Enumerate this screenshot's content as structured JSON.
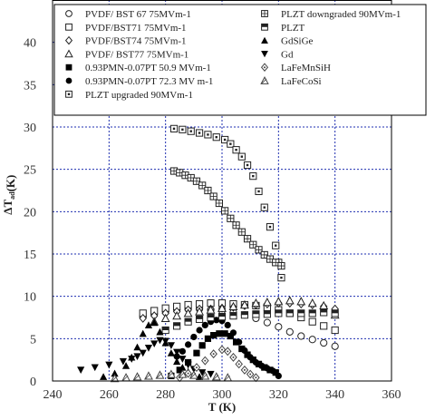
{
  "chart_data": {
    "type": "scatter",
    "xlabel": "T (K)",
    "ylabel": "ΔT_ad (K)",
    "ylabel_main": "ΔT",
    "ylabel_sub": "ad",
    "ylabel_unit": "(K)",
    "xlim": [
      240,
      360
    ],
    "ylim": [
      0,
      45
    ],
    "x_ticks": [
      240,
      260,
      280,
      300,
      320,
      340,
      360
    ],
    "y_ticks": [
      0,
      5,
      10,
      15,
      20,
      25,
      30,
      35,
      40
    ],
    "grid": true,
    "legend_position": "top",
    "series": [
      {
        "name": "PVDF/ BST 67 75MVm-1",
        "marker": "circle-open",
        "color": "#222222",
        "points": [
          [
            272,
            7.6
          ],
          [
            276,
            7.9
          ],
          [
            280,
            8.2
          ],
          [
            284,
            8.4
          ],
          [
            288,
            8.5
          ],
          [
            292,
            8.5
          ],
          [
            296,
            8.4
          ],
          [
            300,
            8.3
          ],
          [
            304,
            8.1
          ],
          [
            308,
            7.8
          ],
          [
            312,
            7.4
          ],
          [
            316,
            6.9
          ],
          [
            320,
            6.4
          ],
          [
            324,
            5.8
          ],
          [
            328,
            5.3
          ],
          [
            332,
            4.9
          ],
          [
            336,
            4.5
          ],
          [
            340,
            4.1
          ]
        ]
      },
      {
        "name": "PVDF/BST71 75MVm-1",
        "marker": "square-open",
        "color": "#222222",
        "points": [
          [
            272,
            8.0
          ],
          [
            276,
            8.3
          ],
          [
            280,
            8.6
          ],
          [
            284,
            8.8
          ],
          [
            288,
            9.0
          ],
          [
            292,
            9.1
          ],
          [
            296,
            9.2
          ],
          [
            300,
            9.2
          ],
          [
            304,
            9.1
          ],
          [
            308,
            9.0
          ],
          [
            312,
            8.9
          ],
          [
            316,
            8.7
          ],
          [
            320,
            8.4
          ],
          [
            324,
            8.0
          ],
          [
            328,
            7.5
          ],
          [
            332,
            7.0
          ],
          [
            336,
            6.5
          ],
          [
            340,
            6.0
          ]
        ]
      },
      {
        "name": "PVDF/BST74 75MVm-1",
        "marker": "diamond-open",
        "color": "#222222",
        "points": [
          [
            272,
            7.4
          ],
          [
            276,
            7.7
          ],
          [
            280,
            8.0
          ],
          [
            284,
            8.2
          ],
          [
            288,
            8.4
          ],
          [
            292,
            8.5
          ],
          [
            296,
            8.5
          ],
          [
            300,
            8.6
          ],
          [
            304,
            8.7
          ],
          [
            308,
            8.9
          ],
          [
            312,
            9.0
          ],
          [
            316,
            9.1
          ],
          [
            320,
            9.2
          ],
          [
            324,
            9.2
          ],
          [
            328,
            9.1
          ],
          [
            332,
            9.0
          ],
          [
            336,
            8.8
          ],
          [
            340,
            8.5
          ]
        ]
      },
      {
        "name": "PVDF/ BST77 75MVm-1",
        "marker": "triangle-open",
        "color": "#222222",
        "points": [
          [
            276,
            7.0
          ],
          [
            280,
            7.4
          ],
          [
            284,
            7.7
          ],
          [
            288,
            8.0
          ],
          [
            292,
            8.2
          ],
          [
            296,
            8.4
          ],
          [
            300,
            8.6
          ],
          [
            304,
            8.8
          ],
          [
            308,
            9.0
          ],
          [
            312,
            9.2
          ],
          [
            316,
            9.3
          ],
          [
            320,
            9.4
          ],
          [
            324,
            9.5
          ],
          [
            328,
            9.4
          ],
          [
            332,
            9.2
          ],
          [
            336,
            8.9
          ],
          [
            340,
            7.8
          ]
        ]
      },
      {
        "name": "0.93PMN-0.07PT  50.9 MVm-1",
        "marker": "square-filled",
        "color": "#000000",
        "points": [
          [
            282,
            0.6
          ],
          [
            285,
            1.3
          ],
          [
            288,
            2.2
          ],
          [
            291,
            3.3
          ],
          [
            293,
            4.2
          ],
          [
            295,
            5.0
          ],
          [
            297,
            5.4
          ],
          [
            299,
            5.6
          ],
          [
            301,
            5.6
          ],
          [
            303,
            5.3
          ],
          [
            305,
            4.6
          ],
          [
            307,
            3.8
          ],
          [
            309,
            3.1
          ],
          [
            311,
            2.5
          ],
          [
            313,
            2.0
          ],
          [
            315,
            1.6
          ],
          [
            317,
            1.3
          ],
          [
            319,
            1.0
          ]
        ]
      },
      {
        "name": "0.93PMN-0.07PT 72.3 MV m-1",
        "marker": "circle-filled",
        "color": "#000000",
        "points": [
          [
            284,
            2.9
          ],
          [
            286,
            3.5
          ],
          [
            288,
            4.3
          ],
          [
            290,
            5.2
          ],
          [
            292,
            6.0
          ],
          [
            294,
            6.6
          ],
          [
            296,
            7.0
          ],
          [
            298,
            7.2
          ],
          [
            300,
            7.1
          ],
          [
            302,
            6.6
          ],
          [
            304,
            5.7
          ],
          [
            306,
            4.6
          ],
          [
            308,
            3.6
          ],
          [
            310,
            2.8
          ],
          [
            312,
            2.2
          ],
          [
            314,
            1.8
          ],
          [
            316,
            1.5
          ],
          [
            318,
            1.2
          ],
          [
            320,
            0.6
          ]
        ]
      },
      {
        "name": "PLZT upgraded 90MVm-1",
        "marker": "square-dot",
        "color": "#222222",
        "points": [
          [
            283,
            29.8
          ],
          [
            286,
            29.7
          ],
          [
            289,
            29.5
          ],
          [
            292,
            29.3
          ],
          [
            295,
            29.1
          ],
          [
            298,
            28.8
          ],
          [
            301,
            28.5
          ],
          [
            303,
            28.0
          ],
          [
            305,
            27.3
          ],
          [
            307,
            26.5
          ],
          [
            309,
            25.5
          ],
          [
            311,
            24.2
          ],
          [
            313,
            22.4
          ],
          [
            315,
            20.5
          ],
          [
            317,
            18.2
          ],
          [
            319,
            16.0
          ],
          [
            320,
            14.0
          ],
          [
            321,
            12.2
          ]
        ]
      },
      {
        "name": "PLZT downgraded 90MVm-1",
        "marker": "square-hash",
        "color": "#222222",
        "points": [
          [
            283,
            24.8
          ],
          [
            285,
            24.6
          ],
          [
            287,
            24.3
          ],
          [
            289,
            24.0
          ],
          [
            291,
            23.6
          ],
          [
            293,
            23.1
          ],
          [
            295,
            22.5
          ],
          [
            297,
            21.8
          ],
          [
            299,
            21.0
          ],
          [
            301,
            20.1
          ],
          [
            303,
            19.2
          ],
          [
            305,
            18.4
          ],
          [
            307,
            17.6
          ],
          [
            309,
            16.8
          ],
          [
            311,
            16.1
          ],
          [
            313,
            15.5
          ],
          [
            315,
            14.9
          ],
          [
            317,
            14.4
          ],
          [
            319,
            14.0
          ],
          [
            321,
            13.6
          ]
        ]
      },
      {
        "name": "PLZT",
        "marker": "square-half",
        "color": "#222222",
        "points": [
          [
            280,
            6.0
          ],
          [
            284,
            6.5
          ],
          [
            288,
            7.0
          ],
          [
            292,
            7.3
          ],
          [
            296,
            7.5
          ],
          [
            300,
            7.6
          ],
          [
            304,
            7.7
          ],
          [
            308,
            7.8
          ],
          [
            312,
            7.9
          ],
          [
            316,
            7.9
          ],
          [
            320,
            8.0
          ],
          [
            324,
            8.0
          ],
          [
            328,
            8.0
          ],
          [
            332,
            8.0
          ],
          [
            336,
            8.1
          ],
          [
            340,
            8.0
          ]
        ]
      },
      {
        "name": "GdSiGe",
        "marker": "triangle-filled",
        "color": "#000000",
        "points": [
          [
            258,
            0.5
          ],
          [
            262,
            0.9
          ],
          [
            266,
            1.8
          ],
          [
            268,
            2.8
          ],
          [
            270,
            4.0
          ],
          [
            272,
            5.6
          ],
          [
            274,
            6.6
          ],
          [
            276,
            6.9
          ],
          [
            278,
            5.8
          ],
          [
            280,
            4.5
          ],
          [
            282,
            3.3
          ],
          [
            284,
            2.3
          ],
          [
            286,
            1.6
          ],
          [
            288,
            1.1
          ],
          [
            290,
            0.7
          ],
          [
            292,
            0.5
          ]
        ]
      },
      {
        "name": "Gd",
        "marker": "triangle-down-filled",
        "color": "#000000",
        "points": [
          [
            250,
            1.3
          ],
          [
            255,
            1.6
          ],
          [
            260,
            1.9
          ],
          [
            265,
            2.3
          ],
          [
            268,
            2.6
          ],
          [
            270,
            2.9
          ],
          [
            272,
            3.3
          ],
          [
            274,
            3.9
          ],
          [
            276,
            4.4
          ],
          [
            278,
            4.8
          ],
          [
            280,
            4.7
          ],
          [
            282,
            4.2
          ],
          [
            284,
            3.4
          ],
          [
            286,
            2.6
          ],
          [
            288,
            1.9
          ],
          [
            290,
            1.4
          ],
          [
            293,
            1.0
          ],
          [
            296,
            0.8
          ]
        ]
      },
      {
        "name": "LaFeMnSiH",
        "marker": "diamond-dot",
        "color": "#444444",
        "points": [
          [
            285,
            0.4
          ],
          [
            288,
            0.9
          ],
          [
            291,
            1.6
          ],
          [
            294,
            2.4
          ],
          [
            297,
            3.2
          ],
          [
            300,
            3.7
          ],
          [
            302,
            3.5
          ],
          [
            304,
            2.8
          ],
          [
            306,
            2.0
          ],
          [
            308,
            1.3
          ],
          [
            310,
            0.8
          ],
          [
            312,
            0.4
          ]
        ]
      },
      {
        "name": "LaFeCoSi",
        "marker": "triangle-slash",
        "color": "#444444",
        "points": [
          [
            262,
            0.3
          ],
          [
            266,
            0.4
          ],
          [
            270,
            0.5
          ],
          [
            274,
            0.6
          ],
          [
            278,
            0.7
          ],
          [
            282,
            0.8
          ],
          [
            286,
            0.8
          ],
          [
            290,
            0.7
          ],
          [
            294,
            0.6
          ],
          [
            298,
            0.5
          ],
          [
            302,
            0.4
          ]
        ]
      }
    ]
  }
}
